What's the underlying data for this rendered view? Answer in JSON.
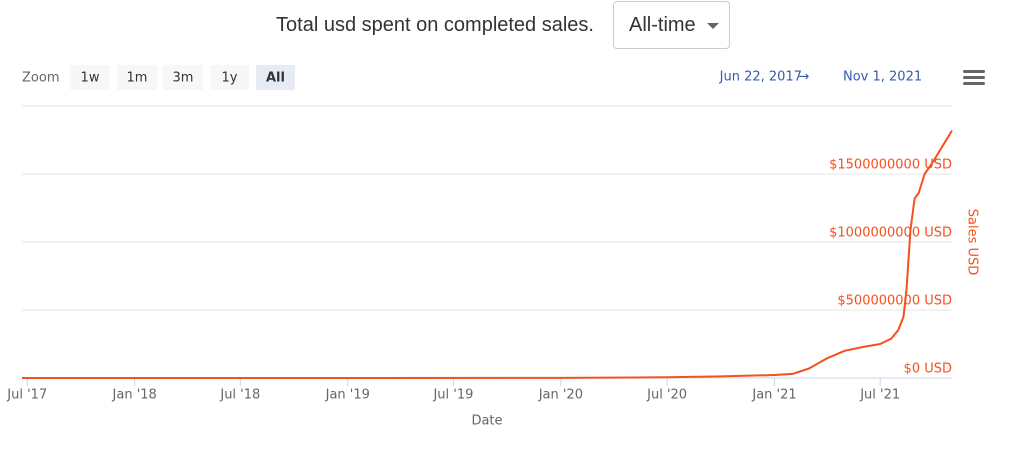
{
  "header": {
    "title": "Total usd spent on completed sales."
  },
  "dropdown": {
    "label": "All-time"
  },
  "zoom": {
    "label": "Zoom",
    "buttons": [
      "1w",
      "1m",
      "3m",
      "1y",
      "All"
    ],
    "selected": "All"
  },
  "range": {
    "from": "Jun 22, 2017",
    "separator": "→",
    "to": "Nov 1, 2021"
  },
  "chart_data": {
    "type": "line",
    "x_label": "Date",
    "y_label": "Sales USD",
    "xlim": [
      "2017-06-22",
      "2021-11-01"
    ],
    "xticks": [
      {
        "value": "2017-07-01",
        "label": "Jul '17"
      },
      {
        "value": "2018-01-01",
        "label": "Jan '18"
      },
      {
        "value": "2018-07-01",
        "label": "Jul '18"
      },
      {
        "value": "2019-01-01",
        "label": "Jan '19"
      },
      {
        "value": "2019-07-01",
        "label": "Jul '19"
      },
      {
        "value": "2020-01-01",
        "label": "Jan '20"
      },
      {
        "value": "2020-07-01",
        "label": "Jul '20"
      },
      {
        "value": "2021-01-01",
        "label": "Jan '21"
      },
      {
        "value": "2021-07-01",
        "label": "Jul '21"
      }
    ],
    "ylim": [
      0,
      2000000000
    ],
    "yticks": [
      {
        "value": 0,
        "label": "$0 USD"
      },
      {
        "value": 500000000,
        "label": "$500000000 USD"
      },
      {
        "value": 1000000000,
        "label": "$1000000000 USD"
      },
      {
        "value": 1500000000,
        "label": "$1500000000 USD"
      }
    ],
    "grid": true,
    "x": [
      "2017-06-22",
      "2018-01-01",
      "2019-01-01",
      "2020-01-01",
      "2020-07-01",
      "2020-10-01",
      "2021-01-01",
      "2021-02-01",
      "2021-03-01",
      "2021-04-01",
      "2021-05-01",
      "2021-06-01",
      "2021-07-01",
      "2021-07-20",
      "2021-08-01",
      "2021-08-10",
      "2021-08-15",
      "2021-08-22",
      "2021-08-29",
      "2021-09-05",
      "2021-09-15",
      "2021-10-01",
      "2021-10-15",
      "2021-11-01"
    ],
    "series": [
      {
        "name": "Sales USD",
        "color": "#f4511e",
        "values": [
          0,
          0,
          0,
          1000000,
          5000000,
          12000000,
          22000000,
          30000000,
          70000000,
          145000000,
          200000000,
          228000000,
          250000000,
          290000000,
          353000000,
          450000000,
          650000000,
          1090000000,
          1320000000,
          1360000000,
          1500000000,
          1600000000,
          1700000000,
          1820000000
        ]
      }
    ]
  }
}
